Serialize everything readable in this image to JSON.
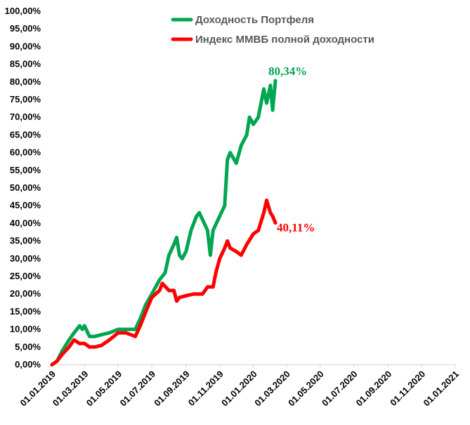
{
  "chart_data": {
    "type": "line",
    "title": "",
    "xlabel": "",
    "ylabel": "",
    "ylim": [
      0,
      100
    ],
    "y_ticks": [
      "0,00%",
      "5,00%",
      "10,00%",
      "15,00%",
      "20,00%",
      "25,00%",
      "30,00%",
      "35,00%",
      "40,00%",
      "45,00%",
      "50,00%",
      "55,00%",
      "60,00%",
      "65,00%",
      "70,00%",
      "75,00%",
      "80,00%",
      "85,00%",
      "90,00%",
      "95,00%",
      "100,00%"
    ],
    "x_ticks": [
      "01.01.2019",
      "01.03.2019",
      "01.05.2019",
      "01.07.2019",
      "01.09.2019",
      "01.11.2019",
      "01.01.2020",
      "01.03.2020",
      "01.05.2020",
      "01.07.2020",
      "01.09.2020",
      "01.11.2020",
      "01.01.2021"
    ],
    "grid": false,
    "legend_position": "top",
    "series": [
      {
        "name": "Доходность Портфеля",
        "color": "#00a651",
        "end_label": "80,34%",
        "points": [
          [
            "01.01.2019",
            0
          ],
          [
            "10.01.2019",
            1
          ],
          [
            "20.01.2019",
            4
          ],
          [
            "01.02.2019",
            7
          ],
          [
            "10.02.2019",
            9
          ],
          [
            "20.02.2019",
            11
          ],
          [
            "25.02.2019",
            10
          ],
          [
            "01.03.2019",
            11
          ],
          [
            "10.03.2019",
            8
          ],
          [
            "20.03.2019",
            8
          ],
          [
            "01.04.2019",
            8.5
          ],
          [
            "15.04.2019",
            9
          ],
          [
            "01.05.2019",
            10
          ],
          [
            "15.05.2019",
            10
          ],
          [
            "01.06.2019",
            10
          ],
          [
            "10.06.2019",
            13
          ],
          [
            "20.06.2019",
            17
          ],
          [
            "01.07.2019",
            20
          ],
          [
            "15.07.2019",
            24
          ],
          [
            "25.07.2019",
            26
          ],
          [
            "01.08.2019",
            31
          ],
          [
            "10.08.2019",
            34
          ],
          [
            "15.08.2019",
            36
          ],
          [
            "20.08.2019",
            31
          ],
          [
            "25.08.2019",
            30
          ],
          [
            "01.09.2019",
            32
          ],
          [
            "10.09.2019",
            38
          ],
          [
            "20.09.2019",
            42
          ],
          [
            "25.09.2019",
            43
          ],
          [
            "01.10.2019",
            41
          ],
          [
            "10.10.2019",
            38
          ],
          [
            "15.10.2019",
            31
          ],
          [
            "20.10.2019",
            38
          ],
          [
            "01.11.2019",
            42
          ],
          [
            "10.11.2019",
            45
          ],
          [
            "15.11.2019",
            58
          ],
          [
            "20.11.2019",
            60
          ],
          [
            "01.12.2019",
            57
          ],
          [
            "10.12.2019",
            62
          ],
          [
            "20.12.2019",
            65
          ],
          [
            "25.12.2019",
            70
          ],
          [
            "01.01.2020",
            68
          ],
          [
            "10.01.2020",
            70
          ],
          [
            "20.01.2020",
            78
          ],
          [
            "25.01.2020",
            74
          ],
          [
            "01.02.2020",
            79
          ],
          [
            "05.02.2020",
            72
          ],
          [
            "10.02.2020",
            80.34
          ]
        ]
      },
      {
        "name": "Индекс ММВБ полной доходности",
        "color": "#ff0000",
        "end_label": "40,11%",
        "points": [
          [
            "01.01.2019",
            0
          ],
          [
            "10.01.2019",
            1
          ],
          [
            "20.01.2019",
            3
          ],
          [
            "01.02.2019",
            5
          ],
          [
            "10.02.2019",
            7
          ],
          [
            "20.02.2019",
            6
          ],
          [
            "01.03.2019",
            6
          ],
          [
            "10.03.2019",
            5
          ],
          [
            "20.03.2019",
            5
          ],
          [
            "01.04.2019",
            5.5
          ],
          [
            "15.04.2019",
            7
          ],
          [
            "01.05.2019",
            9
          ],
          [
            "15.05.2019",
            9
          ],
          [
            "01.06.2019",
            8
          ],
          [
            "10.06.2019",
            11
          ],
          [
            "20.06.2019",
            15
          ],
          [
            "01.07.2019",
            19
          ],
          [
            "15.07.2019",
            21
          ],
          [
            "20.07.2019",
            23
          ],
          [
            "01.08.2019",
            21
          ],
          [
            "10.08.2019",
            21
          ],
          [
            "15.08.2019",
            18
          ],
          [
            "20.08.2019",
            19
          ],
          [
            "01.09.2019",
            19.5
          ],
          [
            "15.09.2019",
            20
          ],
          [
            "01.10.2019",
            20
          ],
          [
            "10.10.2019",
            22
          ],
          [
            "20.10.2019",
            22
          ],
          [
            "25.10.2019",
            26
          ],
          [
            "01.11.2019",
            30
          ],
          [
            "10.11.2019",
            33
          ],
          [
            "15.11.2019",
            35
          ],
          [
            "20.11.2019",
            33
          ],
          [
            "01.12.2019",
            32
          ],
          [
            "10.12.2019",
            31
          ],
          [
            "20.12.2019",
            34
          ],
          [
            "01.01.2020",
            37
          ],
          [
            "10.01.2020",
            38
          ],
          [
            "20.01.2020",
            43
          ],
          [
            "25.01.2020",
            46.5
          ],
          [
            "01.02.2020",
            43
          ],
          [
            "05.02.2020",
            42
          ],
          [
            "10.02.2020",
            40.11
          ]
        ]
      }
    ]
  }
}
